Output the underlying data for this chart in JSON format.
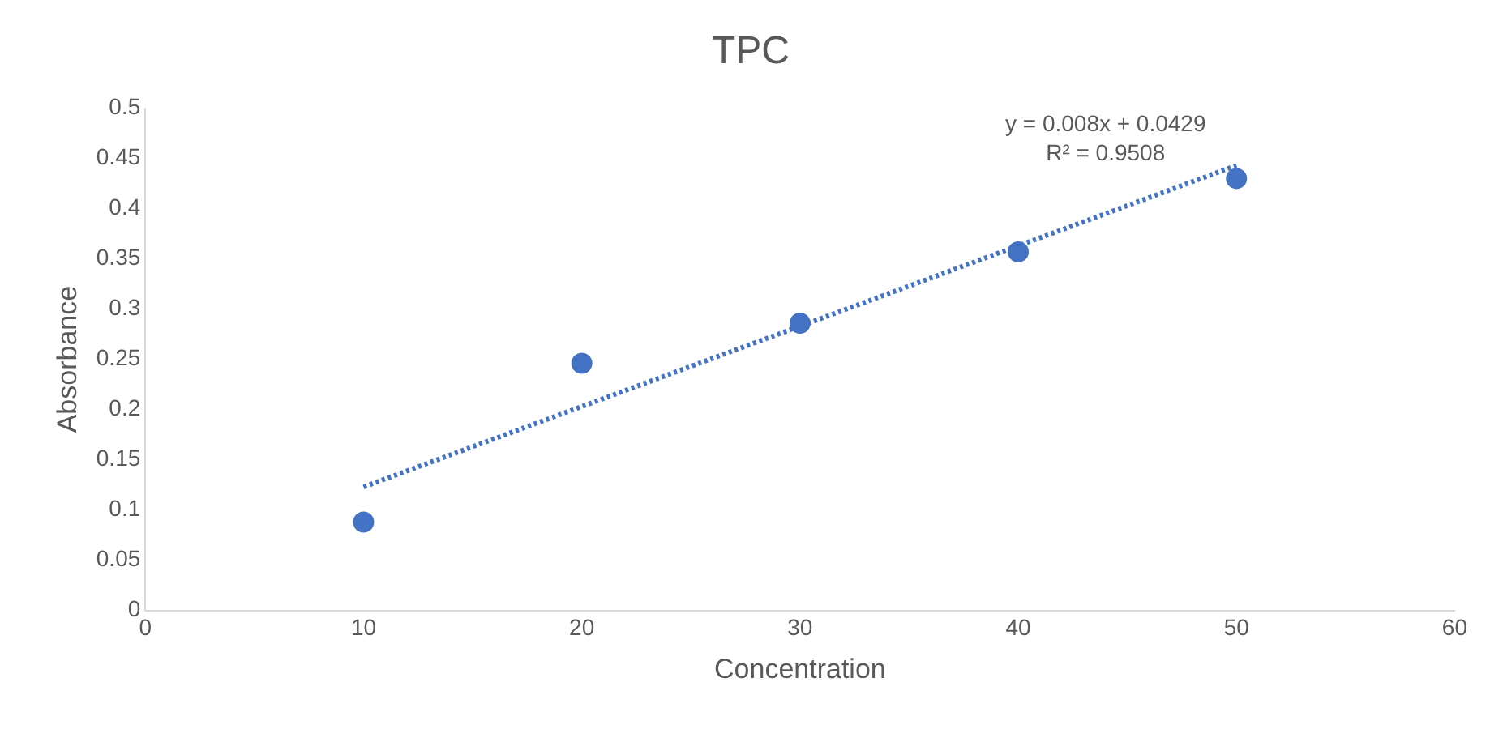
{
  "chart_data": {
    "type": "scatter",
    "title": "TPC",
    "xlabel": "Concentration",
    "ylabel": "Absorbance",
    "x": [
      10,
      20,
      30,
      40,
      50
    ],
    "series": [
      {
        "color": "#4472c4",
        "values": [
          0.088,
          0.246,
          0.286,
          0.357,
          0.43
        ],
        "marker": "circle"
      },
      {
        "type": "line",
        "color": "#4472c4",
        "x": [
          10,
          50
        ],
        "values": [
          0.123,
          0.443
        ],
        "line_style": "dotted",
        "marker": "none"
      }
    ],
    "annotations": [
      "y = 0.008x + 0.0429",
      "R² = 0.9508"
    ],
    "xlim": [
      0,
      60
    ],
    "xticks": [
      0,
      10,
      20,
      30,
      40,
      50,
      60
    ],
    "ylim": [
      0,
      0.5
    ],
    "yticks": [
      0,
      0.05,
      0.1,
      0.15,
      0.2,
      0.25,
      0.3,
      0.35,
      0.4,
      0.45,
      0.5
    ],
    "grid": false,
    "legend": false
  }
}
